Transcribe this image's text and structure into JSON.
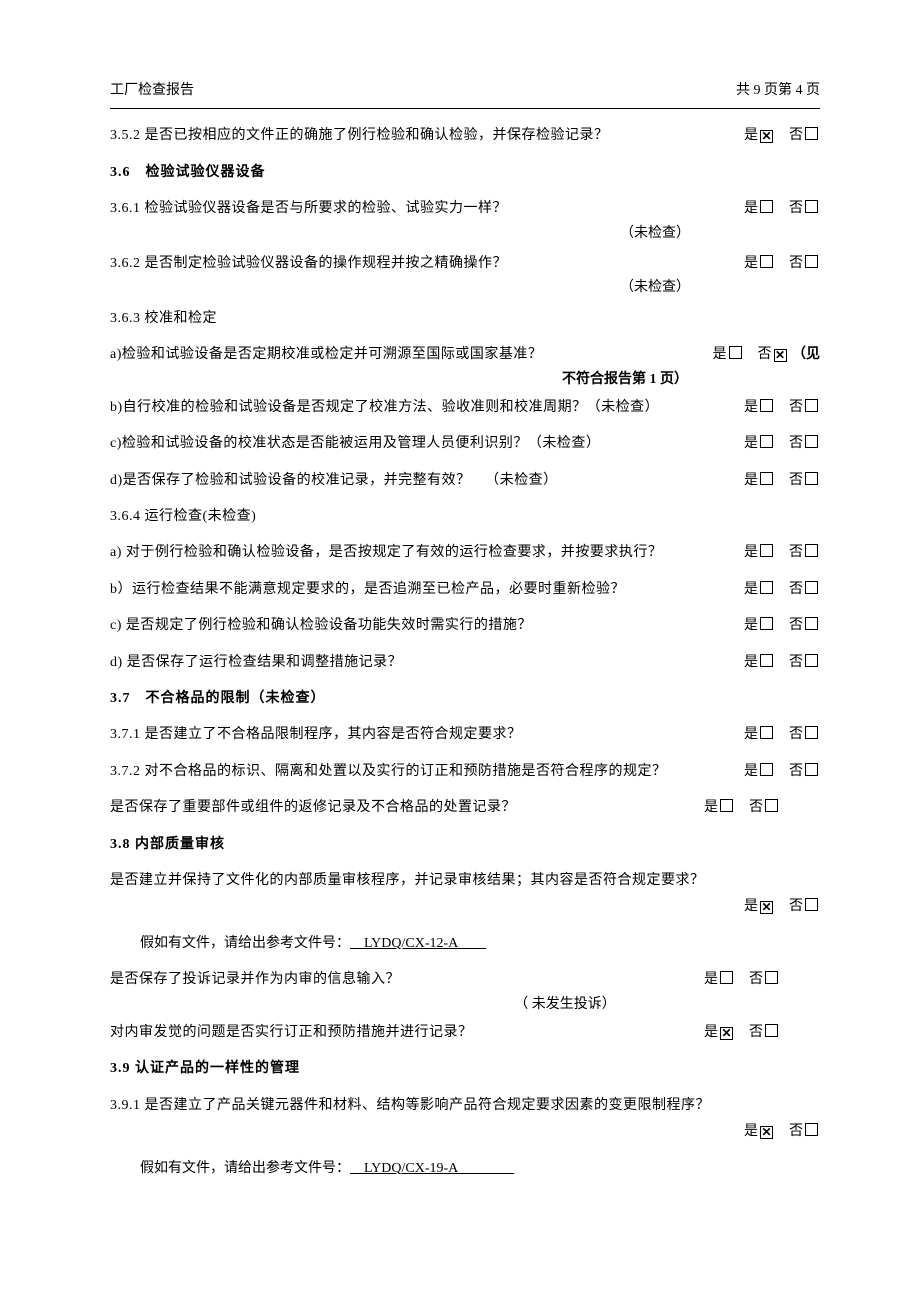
{
  "header": {
    "left": "工厂检查报告",
    "right": "共 9 页第 4 页"
  },
  "items": [
    {
      "name": "q-3-5-2",
      "text": "3.5.2 是否已按相应的文件正的确施了例行检验和确认检验，并保存检验记录？",
      "yes": true,
      "no": false
    },
    {
      "name": "sect-3-6",
      "type": "section",
      "text": "3.6 检验试验仪器设备"
    },
    {
      "name": "q-3-6-1",
      "text": "3.6.1 检验试验仪器设备是否与所要求的检验、试验实力一样？",
      "yes": false,
      "no": false
    },
    {
      "name": "note-3-6-1",
      "type": "note-right",
      "text": "（未检查）"
    },
    {
      "name": "q-3-6-2",
      "text": "3.6.2 是否制定检验试验仪器设备的操作规程并按之精确操作？",
      "yes": false,
      "no": false
    },
    {
      "name": "note-3-6-2",
      "type": "note-right",
      "text": "（未检查）"
    },
    {
      "name": "q-3-6-3",
      "type": "plain",
      "text": "3.6.3 校准和检定"
    },
    {
      "name": "q-3-6-3-a",
      "text": "a)检验和试验设备是否定期校准或检定并可溯源至国际或国家基准？",
      "yes": false,
      "no": true,
      "trail": "（见"
    },
    {
      "name": "ncr-note",
      "type": "ncr",
      "text": "不符合报告第 1 页）"
    },
    {
      "name": "q-3-6-3-b",
      "text": "b)自行校准的检验和试验设备是否规定了校准方法、验收准则和校准周期？（未检查）",
      "yes": false,
      "no": false
    },
    {
      "name": "q-3-6-3-c",
      "text": "c)检验和试验设备的校准状态是否能被运用及管理人员便利识别？（未检查）",
      "yes": false,
      "no": false
    },
    {
      "name": "q-3-6-3-d",
      "text": "d)是否保存了检验和试验设备的校准记录，并完整有效？ （未检查）",
      "yes": false,
      "no": false
    },
    {
      "name": "q-3-6-4",
      "type": "plain",
      "text": "3.6.4 运行检查(未检查)"
    },
    {
      "name": "q-3-6-4-a",
      "text": "a) 对于例行检验和确认检验设备，是否按规定了有效的运行检查要求，并按要求执行？",
      "yes": false,
      "no": false
    },
    {
      "name": "q-3-6-4-b",
      "text": "b）运行检查结果不能满意规定要求的，是否追溯至已检产品，必要时重新检验？",
      "yes": false,
      "no": false
    },
    {
      "name": "q-3-6-4-c",
      "text": "c) 是否规定了例行检验和确认检验设备功能失效时需实行的措施？",
      "yes": false,
      "no": false
    },
    {
      "name": "q-3-6-4-d",
      "text": "d) 是否保存了运行检查结果和调整措施记录？",
      "yes": false,
      "no": false
    },
    {
      "name": "sect-3-7",
      "type": "section",
      "text": "3.7 不合格品的限制（未检查）"
    },
    {
      "name": "q-3-7-1",
      "text": "3.7.1 是否建立了不合格品限制程序，其内容是否符合规定要求？",
      "yes": false,
      "no": false
    },
    {
      "name": "q-3-7-2",
      "text": "3.7.2 对不合格品的标识、隔离和处置以及实行的订正和预防措施是否符合程序的规定？",
      "yes": false,
      "no": false
    },
    {
      "name": "q-3-7-3",
      "text": "是否保存了重要部件或组件的返修记录及不合格品的处置记录？",
      "yn_alt": true,
      "yes": false,
      "no": false
    },
    {
      "name": "sect-3-8",
      "type": "section",
      "text": "3.8 内部质量审核"
    },
    {
      "name": "q-3-8-1",
      "type": "plain",
      "text": "是否建立并保持了文件化的内部质量审核程序，并记录审核结果；其内容是否符合规定要求？"
    },
    {
      "name": "q-3-8-1-yn",
      "type": "yn-only",
      "yes": true,
      "no": false
    },
    {
      "name": "file-3-8",
      "type": "file",
      "label": "假如有文件，请给出参考文件号：",
      "value": " LYDQ/CX-12-A  "
    },
    {
      "name": "q-3-8-2",
      "text": "是否保存了投诉记录并作为内审的信息输入？",
      "yn_alt": true,
      "yes": false,
      "no": false
    },
    {
      "name": "note-3-8-2",
      "type": "note-center",
      "text": "（ 未发生投诉）"
    },
    {
      "name": "q-3-8-3",
      "text": "对内审发觉的问题是否实行订正和预防措施并进行记录？",
      "yn_alt": true,
      "yes": true,
      "no": false
    },
    {
      "name": "sect-3-9",
      "type": "section",
      "text": "3.9 认证产品的一样性的管理"
    },
    {
      "name": "q-3-9-1",
      "type": "plain",
      "text": "3.9.1 是否建立了产品关键元器件和材料、结构等影响产品符合规定要求因素的变更限制程序？"
    },
    {
      "name": "q-3-9-1-yn",
      "type": "yn-only",
      "yes": true,
      "no": false,
      "extra_gap": true
    },
    {
      "name": "file-3-9",
      "type": "file",
      "label": "假如有文件，请给出参考文件号：",
      "value": " LYDQ/CX-19-A    "
    }
  ],
  "labels": {
    "yes": "是",
    "no": "否"
  }
}
